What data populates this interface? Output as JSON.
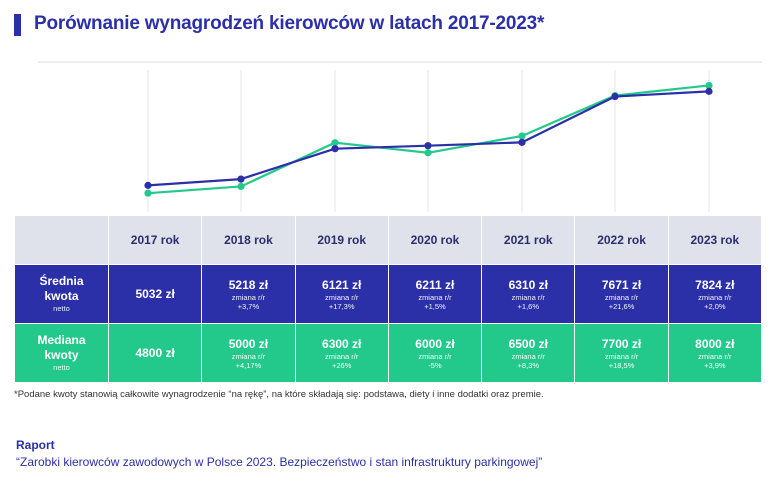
{
  "title": "Porównanie wynagrodzeń kierowców w latach 2017-2023*",
  "colors": {
    "avg": "#2b2fa8",
    "median": "#23c98a",
    "header_bg": "#dfe2ea"
  },
  "table": {
    "years": [
      "2017 rok",
      "2018 rok",
      "2019 rok",
      "2020 rok",
      "2021 rok",
      "2022 rok",
      "2023 rok"
    ],
    "avg_label": [
      "Średnia",
      "kwota"
    ],
    "avg_sub": "netto",
    "median_label": [
      "Mediana",
      "kwoty"
    ],
    "median_sub": "netto",
    "change_label": "zmiana r/r",
    "avg_values": [
      "5032 zł",
      "5218 zł",
      "6121 zł",
      "6211 zł",
      "6310 zł",
      "7671 zł",
      "7824 zł"
    ],
    "avg_changes": [
      "",
      "+3,7%",
      "+17,3%",
      "+1,5%",
      "+1,6%",
      "+21,6%",
      "+2,0%"
    ],
    "median_values": [
      "4800 zł",
      "5000 zł",
      "6300 zł",
      "6000 zł",
      "6500 zł",
      "7700 zł",
      "8000 zł"
    ],
    "median_changes": [
      "",
      "+4,17%",
      "+26%",
      "-5%",
      "+8,3%",
      "+18,5%",
      "+3,9%"
    ]
  },
  "chart_data": {
    "type": "line",
    "x": [
      "2017",
      "2018",
      "2019",
      "2020",
      "2021",
      "2022",
      "2023"
    ],
    "series": [
      {
        "values": [
          5032,
          5218,
          6121,
          6211,
          6310,
          7671,
          7824
        ]
      },
      {
        "values": [
          4800,
          5000,
          6300,
          6000,
          6500,
          7700,
          8000
        ]
      }
    ],
    "ylim": [
      4300,
      8400
    ],
    "grid": "vertical"
  },
  "footnote": "*Podane kwoty stanowią całkowite wynagrodzenie “na rękę”, na które składają się: podstawa, diety i inne dodatki oraz premie.",
  "report": {
    "label": "Raport",
    "title": "“Zarobki kierowców zawodowych w Polsce 2023. Bezpieczeństwo i stan infrastruktury parkingowej”"
  }
}
